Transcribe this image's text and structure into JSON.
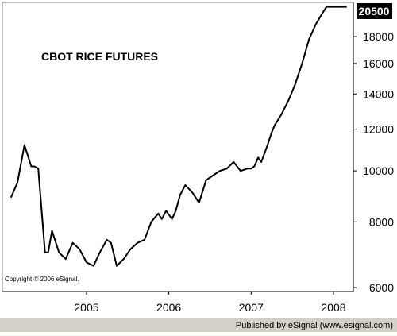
{
  "chart_data": {
    "type": "line",
    "title": "CBOT RICE FUTURES",
    "xlabel": "",
    "ylabel": "",
    "y_scale": "log",
    "ylim": [
      5900,
      20900
    ],
    "x_ticks": [
      "2005",
      "2006",
      "2007",
      "2008"
    ],
    "y_ticks": [
      6000,
      8000,
      10000,
      12000,
      14000,
      16000,
      18000
    ],
    "y_tick_labels": [
      "6000",
      "8000",
      "10000",
      "12000",
      "14000",
      "16000",
      "18000"
    ],
    "last_value_label": "20500",
    "grid": false,
    "series": [
      {
        "x": [
          "2004-02-01",
          "2004-03-01",
          "2004-04-01",
          "2004-05-01",
          "2004-05-15",
          "2004-06-01",
          "2004-07-01",
          "2004-07-15",
          "2004-08-01",
          "2004-09-01",
          "2004-10-01",
          "2004-11-01",
          "2004-12-01",
          "2005-01-01",
          "2005-02-01",
          "2005-03-01",
          "2005-04-01",
          "2005-04-20",
          "2005-05-15",
          "2005-06-15",
          "2005-07-15",
          "2005-08-15",
          "2005-09-15",
          "2005-10-15",
          "2005-11-15",
          "2005-12-01",
          "2005-12-20",
          "2006-01-15",
          "2006-02-01",
          "2006-02-20",
          "2006-03-15",
          "2006-04-15",
          "2006-05-15",
          "2006-06-15",
          "2006-07-15",
          "2006-08-15",
          "2006-09-15",
          "2006-10-15",
          "2006-11-15",
          "2006-12-15",
          "2007-01-01",
          "2007-01-15",
          "2007-02-01",
          "2007-02-15",
          "2007-03-15",
          "2007-04-01",
          "2007-04-15",
          "2007-05-15",
          "2007-06-15",
          "2007-07-15",
          "2007-08-15",
          "2007-09-15",
          "2007-10-15",
          "2007-11-15",
          "2007-12-01",
          "2007-12-20",
          "2008-01-15",
          "2008-02-15",
          "2008-02-29"
        ],
        "values": [
          8900,
          9500,
          11200,
          10200,
          10200,
          10100,
          7000,
          7000,
          7700,
          7000,
          6800,
          7300,
          7100,
          6700,
          6600,
          7000,
          7400,
          7300,
          6600,
          6800,
          7100,
          7300,
          7400,
          8000,
          8300,
          8100,
          8400,
          8100,
          8400,
          9000,
          9400,
          9100,
          8700,
          9600,
          9800,
          10000,
          10100,
          10400,
          10000,
          10100,
          10100,
          10200,
          10600,
          10400,
          11200,
          11800,
          12200,
          12800,
          13600,
          14600,
          16000,
          17800,
          19000,
          20000,
          20500,
          20500,
          20500,
          20500,
          20500
        ]
      }
    ]
  },
  "copyright": "Copyright © 2006 eSignal.",
  "footer": "Published by eSignal (www.esignal.com)",
  "colors": {
    "line": "#000000",
    "tag_bg": "#000000",
    "tag_text": "#ffffff",
    "footer_bg": "#d4d0c8"
  }
}
